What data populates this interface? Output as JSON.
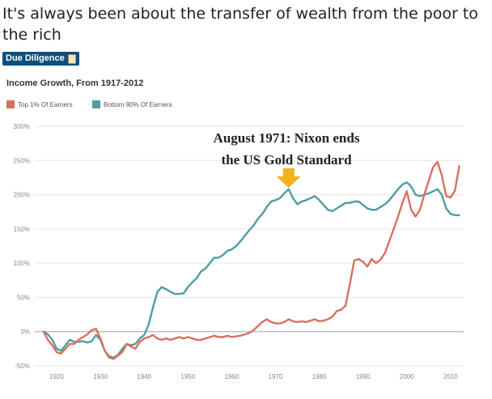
{
  "post": {
    "title": "It's always been about the transfer of wealth from the poor to the rich",
    "flair": "Due Diligence"
  },
  "colors": {
    "top1": "#d9705f",
    "bottom90": "#4e9ea1",
    "flair_bg": "#0d4f7c",
    "arrow": "#f3b21a",
    "grid": "#e6e6e6",
    "zero_line": "#b5b5b5"
  },
  "icons": {
    "flair_emoji": "scroll-icon"
  },
  "chart_data": {
    "type": "line",
    "title": "Income Growth, From 1917-2012",
    "xlabel": "",
    "ylabel": "",
    "xlim": [
      1915,
      2013
    ],
    "ylim": [
      -50,
      300
    ],
    "x_ticks": [
      1920,
      1930,
      1940,
      1950,
      1960,
      1970,
      1980,
      1990,
      2000,
      2010
    ],
    "y_ticks": [
      -50,
      0,
      50,
      100,
      150,
      200,
      250,
      300
    ],
    "y_tick_labels": [
      "-50%",
      "0%",
      "50%",
      "100%",
      "150%",
      "200%",
      "250%",
      "300%"
    ],
    "grid": true,
    "legend_position": "top-left",
    "annotation": {
      "line1": "August 1971: Nixon ends",
      "line2": "the US Gold Standard",
      "x": 1973
    },
    "series": [
      {
        "name": "Top 1% Of Earners",
        "color_key": "top1",
        "points": [
          [
            1917,
            0
          ],
          [
            1918,
            -12
          ],
          [
            1919,
            -20
          ],
          [
            1920,
            -30
          ],
          [
            1921,
            -32
          ],
          [
            1922,
            -25
          ],
          [
            1923,
            -18
          ],
          [
            1924,
            -18
          ],
          [
            1925,
            -12
          ],
          [
            1926,
            -8
          ],
          [
            1927,
            -4
          ],
          [
            1928,
            2
          ],
          [
            1929,
            4
          ],
          [
            1930,
            -10
          ],
          [
            1931,
            -28
          ],
          [
            1932,
            -38
          ],
          [
            1933,
            -40
          ],
          [
            1934,
            -35
          ],
          [
            1935,
            -30
          ],
          [
            1936,
            -18
          ],
          [
            1937,
            -22
          ],
          [
            1938,
            -25
          ],
          [
            1939,
            -15
          ],
          [
            1940,
            -10
          ],
          [
            1941,
            -8
          ],
          [
            1942,
            -5
          ],
          [
            1943,
            -10
          ],
          [
            1944,
            -12
          ],
          [
            1945,
            -10
          ],
          [
            1946,
            -12
          ],
          [
            1947,
            -10
          ],
          [
            1948,
            -8
          ],
          [
            1949,
            -10
          ],
          [
            1950,
            -8
          ],
          [
            1951,
            -10
          ],
          [
            1952,
            -12
          ],
          [
            1953,
            -12
          ],
          [
            1954,
            -10
          ],
          [
            1955,
            -8
          ],
          [
            1956,
            -6
          ],
          [
            1957,
            -8
          ],
          [
            1958,
            -8
          ],
          [
            1959,
            -6
          ],
          [
            1960,
            -8
          ],
          [
            1961,
            -7
          ],
          [
            1962,
            -6
          ],
          [
            1963,
            -4
          ],
          [
            1964,
            -2
          ],
          [
            1965,
            2
          ],
          [
            1966,
            8
          ],
          [
            1967,
            14
          ],
          [
            1968,
            18
          ],
          [
            1969,
            14
          ],
          [
            1970,
            12
          ],
          [
            1971,
            12
          ],
          [
            1972,
            14
          ],
          [
            1973,
            18
          ],
          [
            1974,
            15
          ],
          [
            1975,
            14
          ],
          [
            1976,
            15
          ],
          [
            1977,
            14
          ],
          [
            1978,
            16
          ],
          [
            1979,
            18
          ],
          [
            1980,
            15
          ],
          [
            1981,
            16
          ],
          [
            1982,
            18
          ],
          [
            1983,
            22
          ],
          [
            1984,
            30
          ],
          [
            1985,
            32
          ],
          [
            1986,
            38
          ],
          [
            1987,
            70
          ],
          [
            1988,
            104
          ],
          [
            1989,
            106
          ],
          [
            1990,
            102
          ],
          [
            1991,
            95
          ],
          [
            1992,
            106
          ],
          [
            1993,
            100
          ],
          [
            1994,
            105
          ],
          [
            1995,
            115
          ],
          [
            1996,
            132
          ],
          [
            1997,
            150
          ],
          [
            1998,
            168
          ],
          [
            1999,
            188
          ],
          [
            2000,
            205
          ],
          [
            2001,
            178
          ],
          [
            2002,
            168
          ],
          [
            2003,
            178
          ],
          [
            2004,
            200
          ],
          [
            2005,
            220
          ],
          [
            2006,
            240
          ],
          [
            2007,
            248
          ],
          [
            2008,
            228
          ],
          [
            2009,
            198
          ],
          [
            2010,
            196
          ],
          [
            2011,
            206
          ],
          [
            2012,
            242
          ]
        ]
      },
      {
        "name": "Bottom 90% Of Earners",
        "color_key": "bottom90",
        "points": [
          [
            1917,
            0
          ],
          [
            1918,
            -4
          ],
          [
            1919,
            -12
          ],
          [
            1920,
            -25
          ],
          [
            1921,
            -28
          ],
          [
            1922,
            -20
          ],
          [
            1923,
            -12
          ],
          [
            1924,
            -15
          ],
          [
            1925,
            -15
          ],
          [
            1926,
            -14
          ],
          [
            1927,
            -16
          ],
          [
            1928,
            -14
          ],
          [
            1929,
            -5
          ],
          [
            1930,
            -12
          ],
          [
            1931,
            -28
          ],
          [
            1932,
            -36
          ],
          [
            1933,
            -38
          ],
          [
            1934,
            -34
          ],
          [
            1935,
            -25
          ],
          [
            1936,
            -18
          ],
          [
            1937,
            -20
          ],
          [
            1938,
            -18
          ],
          [
            1939,
            -10
          ],
          [
            1940,
            -5
          ],
          [
            1941,
            10
          ],
          [
            1942,
            35
          ],
          [
            1943,
            58
          ],
          [
            1944,
            65
          ],
          [
            1945,
            62
          ],
          [
            1946,
            58
          ],
          [
            1947,
            55
          ],
          [
            1948,
            55
          ],
          [
            1949,
            56
          ],
          [
            1950,
            65
          ],
          [
            1951,
            72
          ],
          [
            1952,
            78
          ],
          [
            1953,
            88
          ],
          [
            1954,
            92
          ],
          [
            1955,
            100
          ],
          [
            1956,
            108
          ],
          [
            1957,
            108
          ],
          [
            1958,
            112
          ],
          [
            1959,
            118
          ],
          [
            1960,
            120
          ],
          [
            1961,
            125
          ],
          [
            1962,
            132
          ],
          [
            1963,
            140
          ],
          [
            1964,
            148
          ],
          [
            1965,
            155
          ],
          [
            1966,
            165
          ],
          [
            1967,
            172
          ],
          [
            1968,
            182
          ],
          [
            1969,
            190
          ],
          [
            1970,
            192
          ],
          [
            1971,
            195
          ],
          [
            1972,
            202
          ],
          [
            1973,
            208
          ],
          [
            1974,
            195
          ],
          [
            1975,
            186
          ],
          [
            1976,
            190
          ],
          [
            1977,
            192
          ],
          [
            1978,
            195
          ],
          [
            1979,
            198
          ],
          [
            1980,
            192
          ],
          [
            1981,
            185
          ],
          [
            1982,
            178
          ],
          [
            1983,
            176
          ],
          [
            1984,
            180
          ],
          [
            1985,
            184
          ],
          [
            1986,
            188
          ],
          [
            1987,
            188
          ],
          [
            1988,
            190
          ],
          [
            1989,
            190
          ],
          [
            1990,
            185
          ],
          [
            1991,
            180
          ],
          [
            1992,
            178
          ],
          [
            1993,
            178
          ],
          [
            1994,
            182
          ],
          [
            1995,
            186
          ],
          [
            1996,
            192
          ],
          [
            1997,
            200
          ],
          [
            1998,
            208
          ],
          [
            1999,
            215
          ],
          [
            2000,
            218
          ],
          [
            2001,
            212
          ],
          [
            2002,
            200
          ],
          [
            2003,
            198
          ],
          [
            2004,
            200
          ],
          [
            2005,
            202
          ],
          [
            2006,
            205
          ],
          [
            2007,
            208
          ],
          [
            2008,
            200
          ],
          [
            2009,
            180
          ],
          [
            2010,
            172
          ],
          [
            2011,
            170
          ],
          [
            2012,
            170
          ]
        ]
      }
    ]
  }
}
